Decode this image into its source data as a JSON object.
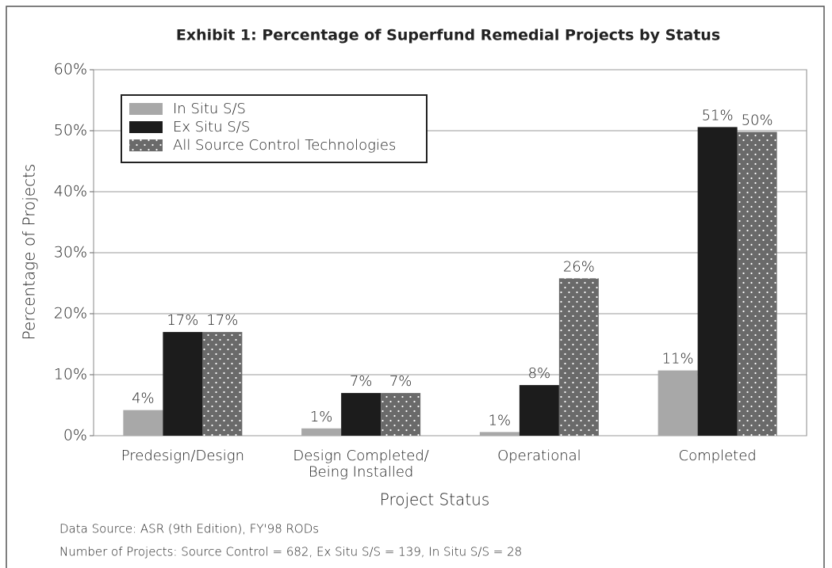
{
  "chart_data": {
    "type": "bar",
    "title": "Exhibit 1:  Percentage of Superfund Remedial Projects by Status",
    "x_label": "Project Status",
    "y_label": "Percentage of Projects",
    "categories": [
      "Predesign/Design",
      "Design Completed/\nBeing Installed",
      "Operational",
      "Completed"
    ],
    "series": [
      {
        "name": "In Situ S/S",
        "color": "#a8a8a8",
        "values": [
          4.2,
          1.2,
          0.6,
          10.7
        ],
        "value_labels": [
          "4%",
          "1%",
          "1%",
          "11%"
        ]
      },
      {
        "name": "Ex Situ S/S",
        "color": "#1c1c1c",
        "values": [
          17,
          7,
          8.3,
          50.6
        ],
        "value_labels": [
          "17%",
          "7%",
          "8%",
          "51%"
        ]
      },
      {
        "name": "All Source Control Technologies",
        "color": "#6a6a6a",
        "pattern": "dots",
        "values": [
          17,
          7,
          25.8,
          49.8
        ],
        "value_labels": [
          "17%",
          "7%",
          "26%",
          "50%"
        ]
      }
    ],
    "ylim": [
      0,
      60
    ],
    "yticks": [
      {
        "value": 0,
        "label": "0%"
      },
      {
        "value": 10,
        "label": "10%"
      },
      {
        "value": 20,
        "label": "20%"
      },
      {
        "value": 30,
        "label": "30%"
      },
      {
        "value": 40,
        "label": "40%"
      },
      {
        "value": 50,
        "label": "50%"
      },
      {
        "value": 60,
        "label": "60%"
      }
    ],
    "grid": true,
    "legend": "upper left",
    "notes": [
      "Data Source: ASR (9th Edition), FY'98 RODs",
      "Number of Projects:  Source Control = 682, Ex  Situ S/S = 139, In Situ S/S = 28"
    ]
  }
}
